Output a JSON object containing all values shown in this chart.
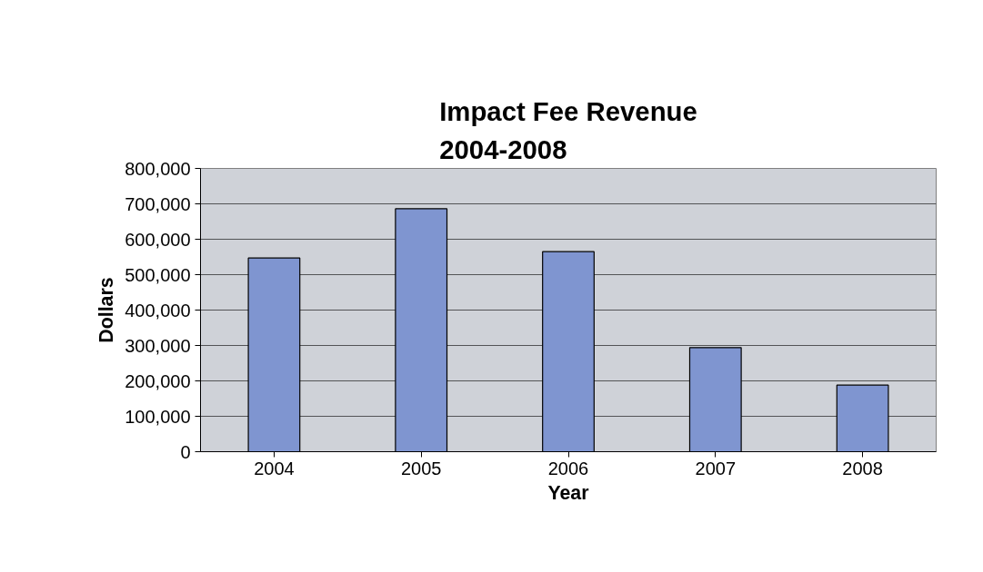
{
  "chart_data": {
    "type": "bar",
    "title": "Impact Fee Revenue\n2004-2008",
    "xlabel": "Year",
    "ylabel": "Dollars",
    "categories": [
      "2004",
      "2005",
      "2006",
      "2007",
      "2008"
    ],
    "values": [
      547000,
      686000,
      565000,
      294000,
      188000
    ],
    "color": "#7f95d0",
    "ylim": [
      0,
      800000
    ],
    "yticks": [
      {
        "value": 0,
        "label": "0"
      },
      {
        "value": 100000,
        "label": "100,000"
      },
      {
        "value": 200000,
        "label": "200,000"
      },
      {
        "value": 300000,
        "label": "300,000"
      },
      {
        "value": 400000,
        "label": "400,000"
      },
      {
        "value": 500000,
        "label": "500,000"
      },
      {
        "value": 600000,
        "label": "600,000"
      },
      {
        "value": 700000,
        "label": "700,000"
      },
      {
        "value": 800000,
        "label": "800,000"
      }
    ],
    "grid": "y"
  }
}
